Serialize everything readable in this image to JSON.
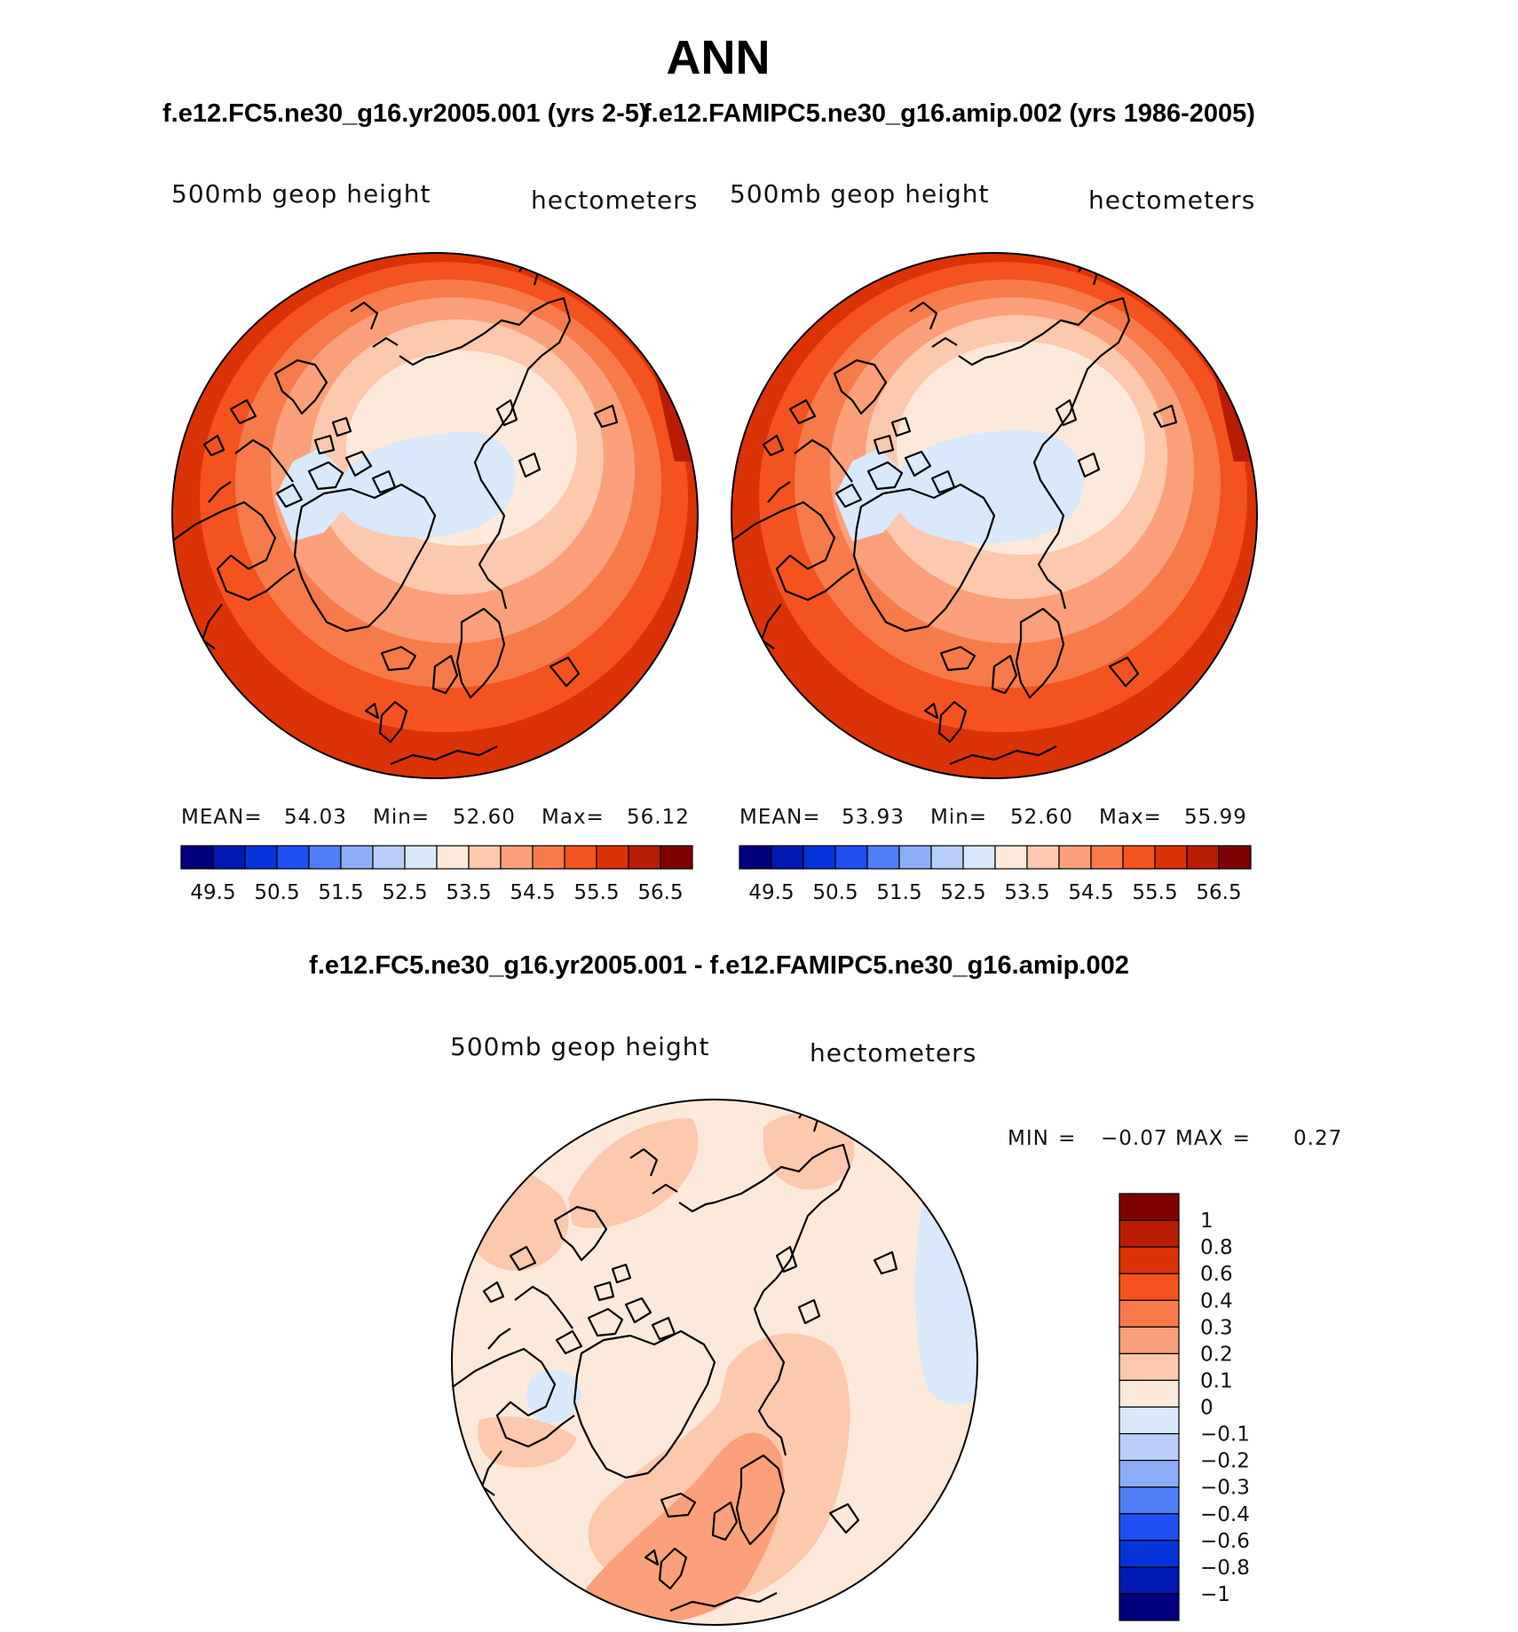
{
  "page": {
    "title": "ANN",
    "top_left_case": "f.e12.FC5.ne30_g16.yr2005.001 (yrs 2-5)",
    "top_right_case": "f.e12.FAMIPC5.ne30_g16.amip.002 (yrs 1986-2005)",
    "diff_case": "f.e12.FC5.ne30_g16.yr2005.001 - f.e12.FAMIPC5.ne30_g16.amip.002"
  },
  "panels": {
    "left": {
      "variable": "500mb geop height",
      "units": "hectometers",
      "mean_label": "MEAN=",
      "mean": "54.03",
      "min_label": "Min=",
      "min": "52.60",
      "max_label": "Max=",
      "max": "56.12"
    },
    "right": {
      "variable": "500mb geop height",
      "units": "hectometers",
      "mean_label": "MEAN=",
      "mean": "53.93",
      "min_label": "Min=",
      "min": "52.60",
      "max_label": "Max=",
      "max": "55.99"
    },
    "diff": {
      "variable": "500mb geop height",
      "units": "hectometers",
      "min_label": "MIN =",
      "min": "−0.07",
      "max_label": "MAX =",
      "max": "0.27"
    }
  },
  "colorbars": {
    "horizontal": {
      "colors": [
        "#00007f",
        "#0019b3",
        "#0533d9",
        "#1f4ff2",
        "#4f7ef5",
        "#8daef7",
        "#b8cef9",
        "#d9e8fb",
        "#fde9d9",
        "#fcc8ae",
        "#fba07a",
        "#f77a4b",
        "#f4521e",
        "#db3207",
        "#b81d04",
        "#7f0000"
      ],
      "tick_labels": [
        "49.5",
        "50.5",
        "51.5",
        "52.5",
        "53.5",
        "54.5",
        "55.5",
        "56.5"
      ]
    },
    "vertical": {
      "colors": [
        "#7f0000",
        "#b81d04",
        "#db3207",
        "#f4521e",
        "#f77a4b",
        "#fba07a",
        "#fcc8ae",
        "#fde9d9",
        "#d9e8fb",
        "#b8cef9",
        "#8daef7",
        "#4f7ef5",
        "#1f4ff2",
        "#0533d9",
        "#0019b3",
        "#00007f"
      ],
      "tick_labels": [
        "1",
        "0.8",
        "0.6",
        "0.4",
        "0.3",
        "0.2",
        "0.1",
        "0",
        "−0.1",
        "−0.2",
        "−0.3",
        "−0.4",
        "−0.6",
        "−0.8",
        "−1"
      ]
    }
  },
  "colors": {
    "outline": "#000000",
    "coast": "#000000"
  }
}
